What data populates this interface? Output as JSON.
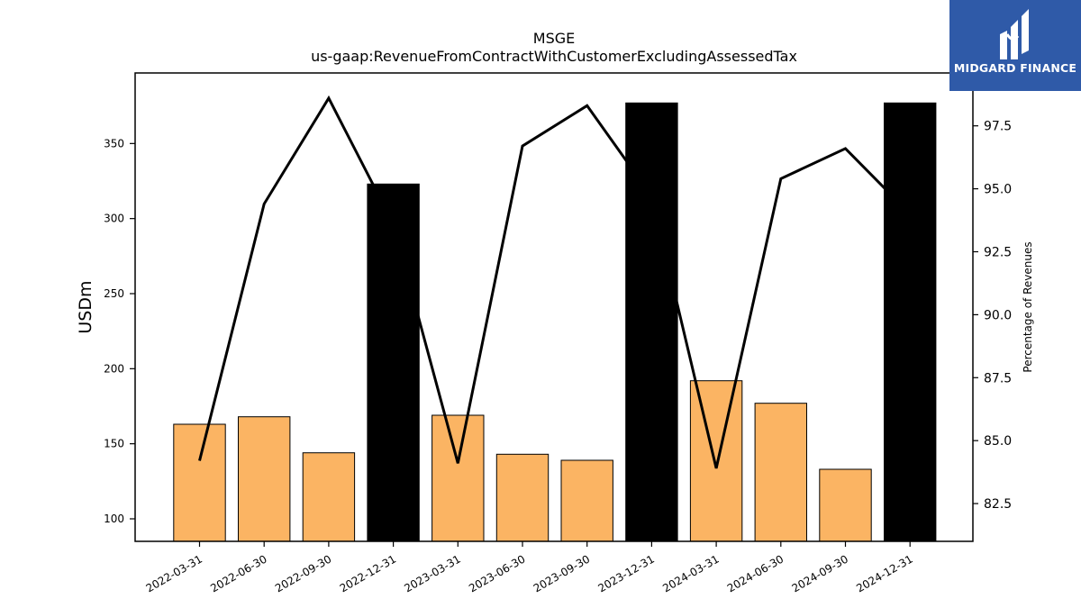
{
  "chart_data": {
    "type": "bar",
    "title": "MSGE",
    "subtitle": "us-gaap:RevenueFromContractWithCustomerExcludingAssessedTax",
    "ylabel": "USDm",
    "y2label": "Percentage of Revenues",
    "categories": [
      "2022-03-31",
      "2022-06-30",
      "2022-09-30",
      "2022-12-31",
      "2023-03-31",
      "2023-06-30",
      "2023-09-30",
      "2023-12-31",
      "2024-03-31",
      "2024-06-30",
      "2024-09-30",
      "2024-12-31"
    ],
    "bar_values": [
      163,
      168,
      144,
      323,
      169,
      143,
      139,
      377,
      192,
      177,
      133,
      377
    ],
    "bar_colors": [
      "#fbb463",
      "#fbb463",
      "#fbb463",
      "#000000",
      "#fbb463",
      "#fbb463",
      "#fbb463",
      "#000000",
      "#fbb463",
      "#fbb463",
      "#fbb463",
      "#000000"
    ],
    "line_values": [
      84.2,
      94.4,
      98.6,
      93.6,
      84.1,
      96.7,
      98.3,
      94.7,
      83.9,
      95.4,
      96.6,
      94.0
    ],
    "ylim": [
      85,
      397
    ],
    "y2lim": [
      81,
      99.6
    ],
    "yticks": [
      "100",
      "150",
      "200",
      "250",
      "300",
      "350"
    ],
    "y2ticks": [
      "82.5",
      "85.0",
      "87.5",
      "90.0",
      "92.5",
      "95.0",
      "97.5"
    ],
    "grid": false,
    "line_color": "#000000"
  },
  "logo": {
    "text": "MIDGARD FINANCE",
    "color": "#2f5aa8"
  }
}
